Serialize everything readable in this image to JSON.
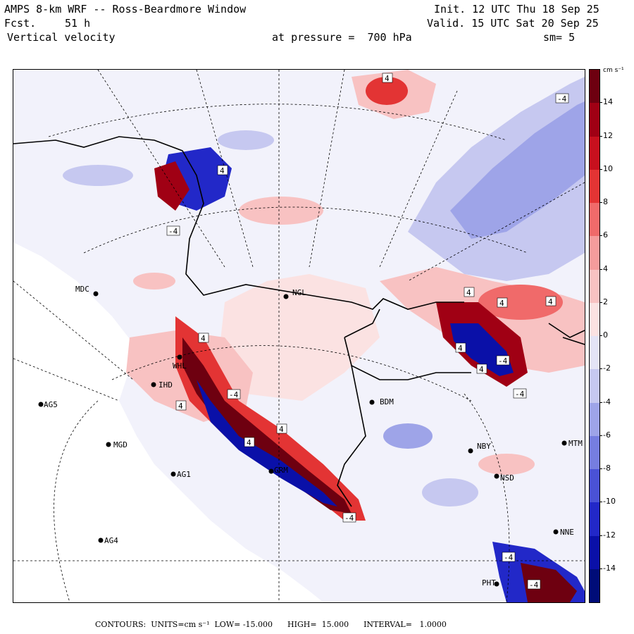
{
  "header": {
    "title": "AMPS 8-km WRF -- Ross-Beardmore Window",
    "forecast_label": "Fcst.",
    "forecast_hours": "51 h",
    "field": "Vertical velocity",
    "init": "Init. 12 UTC Thu 18 Sep 25",
    "valid": "Valid. 15 UTC Sat 20 Sep 25",
    "level": "at pressure =  700 hPa",
    "smoothing": "sm= 5"
  },
  "colorbar": {
    "units": "cm s⁻¹",
    "labels": [
      "14",
      "12",
      "10",
      "8",
      "6",
      "4",
      "2",
      "0",
      "-2",
      "-4",
      "-6",
      "-8",
      "-10",
      "-12",
      "-14"
    ],
    "colors": [
      "#6e0010",
      "#a00014",
      "#c8101e",
      "#e33434",
      "#f06a6a",
      "#f59c9c",
      "#f8c2c2",
      "#fbe2e2",
      "#e4e4f6",
      "#c6c8f0",
      "#9ea4e8",
      "#767ee0",
      "#4a52d6",
      "#2228c8",
      "#0a10a8",
      "#000c78"
    ]
  },
  "stations": [
    {
      "name": "MDC"
    },
    {
      "name": "NGL"
    },
    {
      "name": "IHD"
    },
    {
      "name": "AG5"
    },
    {
      "name": "MGD"
    },
    {
      "name": "AG1"
    },
    {
      "name": "AG4"
    },
    {
      "name": "GRM"
    },
    {
      "name": "BDM"
    },
    {
      "name": "NBY"
    },
    {
      "name": "MTM"
    },
    {
      "name": "NSD"
    },
    {
      "name": "NNE"
    },
    {
      "name": "PHT"
    },
    {
      "name": "WHL"
    }
  ],
  "contour_labels": [
    "4",
    "-4",
    "4",
    "-4",
    "4",
    "4",
    "-4",
    "4",
    "-4",
    "4",
    "4",
    "4",
    "4",
    "-4",
    "4",
    "4",
    "-4",
    "-4",
    "-4"
  ],
  "footer": {
    "contours": "CONTOURS:",
    "units": "UNITS=cm s⁻¹",
    "low": "LOW= -15.000",
    "high": "HIGH=  15.000",
    "interval": "INTERVAL=   1.0000"
  }
}
